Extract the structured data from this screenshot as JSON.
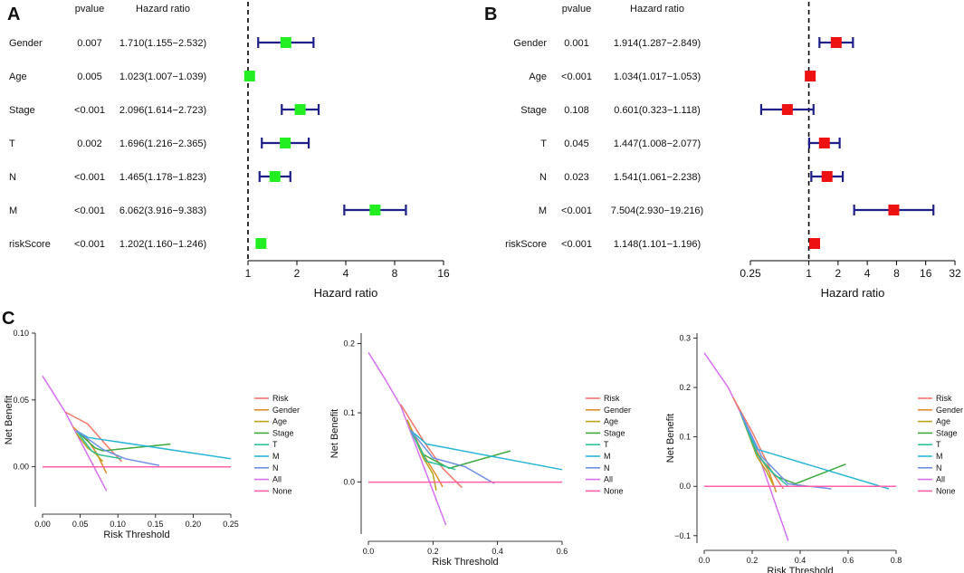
{
  "panels": {
    "A": {
      "label": "A"
    },
    "B": {
      "label": "B"
    },
    "C": {
      "label": "C"
    }
  },
  "colors": {
    "ci": "#1f1f8a",
    "forestA": "#22ee22",
    "forestB": "#ee1111",
    "Risk": "#f07a6a",
    "Gender": "#e08b2c",
    "Age": "#b9a317",
    "Stage": "#3caa3c",
    "T": "#2fbf9c",
    "M": "#2ab6d6",
    "N": "#6f8fe6",
    "All": "#d670f0",
    "None": "#ff5fa8"
  },
  "chart_data": [
    {
      "type": "forest",
      "panel": "A",
      "header_p": "pvalue",
      "header_hr": "Hazard ratio",
      "xlabel": "Hazard ratio",
      "xscale": "log2",
      "xlim": [
        1,
        16
      ],
      "xticks": [
        "1",
        "2",
        "4",
        "8",
        "16"
      ],
      "rows": [
        {
          "name": "Gender",
          "p": "0.007",
          "hr_text": "1.710(1.155−2.532)",
          "hr": 1.71,
          "lo": 1.155,
          "hi": 2.532
        },
        {
          "name": "Age",
          "p": "0.005",
          "hr_text": "1.023(1.007−1.039)",
          "hr": 1.023,
          "lo": 1.007,
          "hi": 1.039
        },
        {
          "name": "Stage",
          "p": "<0.001",
          "hr_text": "2.096(1.614−2.723)",
          "hr": 2.096,
          "lo": 1.614,
          "hi": 2.723
        },
        {
          "name": "T",
          "p": "0.002",
          "hr_text": "1.696(1.216−2.365)",
          "hr": 1.696,
          "lo": 1.216,
          "hi": 2.365
        },
        {
          "name": "N",
          "p": "<0.001",
          "hr_text": "1.465(1.178−1.823)",
          "hr": 1.465,
          "lo": 1.178,
          "hi": 1.823
        },
        {
          "name": "M",
          "p": "<0.001",
          "hr_text": "6.062(3.916−9.383)",
          "hr": 6.062,
          "lo": 3.916,
          "hi": 9.383
        },
        {
          "name": "riskScore",
          "p": "<0.001",
          "hr_text": "1.202(1.160−1.246)",
          "hr": 1.202,
          "lo": 1.16,
          "hi": 1.246
        }
      ]
    },
    {
      "type": "forest",
      "panel": "B",
      "header_p": "pvalue",
      "header_hr": "Hazard ratio",
      "xlabel": "Hazard ratio",
      "xscale": "log2",
      "xlim": [
        0.25,
        32
      ],
      "xticks": [
        "0.25",
        "1",
        "2",
        "4",
        "8",
        "16",
        "32"
      ],
      "rows": [
        {
          "name": "Gender",
          "p": "0.001",
          "hr_text": "1.914(1.287−2.849)",
          "hr": 1.914,
          "lo": 1.287,
          "hi": 2.849
        },
        {
          "name": "Age",
          "p": "<0.001",
          "hr_text": "1.034(1.017−1.053)",
          "hr": 1.034,
          "lo": 1.017,
          "hi": 1.053
        },
        {
          "name": "Stage",
          "p": "0.108",
          "hr_text": "0.601(0.323−1.118)",
          "hr": 0.601,
          "lo": 0.323,
          "hi": 1.118
        },
        {
          "name": "T",
          "p": "0.045",
          "hr_text": "1.447(1.008−2.077)",
          "hr": 1.447,
          "lo": 1.008,
          "hi": 2.077
        },
        {
          "name": "N",
          "p": "0.023",
          "hr_text": "1.541(1.061−2.238)",
          "hr": 1.541,
          "lo": 1.061,
          "hi": 2.238
        },
        {
          "name": "M",
          "p": "<0.001",
          "hr_text": "7.504(2.930−19.216)",
          "hr": 7.504,
          "lo": 2.93,
          "hi": 19.216
        },
        {
          "name": "riskScore",
          "p": "<0.001",
          "hr_text": "1.148(1.101−1.196)",
          "hr": 1.148,
          "lo": 1.101,
          "hi": 1.196
        }
      ]
    },
    {
      "type": "line",
      "panel": "C1",
      "xlabel": "Risk Threshold",
      "ylabel": "Net Benefit",
      "xlim": [
        0,
        0.25
      ],
      "ylim": [
        -0.03,
        0.1
      ],
      "xticks": [
        "0.00",
        "0.05",
        "0.10",
        "0.15",
        "0.20",
        "0.25"
      ],
      "yticks": [
        "0.00",
        "0.05",
        "0.10"
      ],
      "legend": [
        "Risk",
        "Gender",
        "Age",
        "Stage",
        "T",
        "M",
        "N",
        "All",
        "None"
      ],
      "series": [
        {
          "name": "All",
          "points": [
            [
              0,
              0.068
            ],
            [
              0.03,
              0.041
            ],
            [
              0.085,
              -0.018
            ]
          ]
        },
        {
          "name": "Risk",
          "points": [
            [
              0.03,
              0.041
            ],
            [
              0.06,
              0.032
            ],
            [
              0.085,
              0.016
            ],
            [
              0.105,
              0.004
            ]
          ]
        },
        {
          "name": "Gender",
          "points": [
            [
              0.04,
              0.03
            ],
            [
              0.06,
              0.02
            ],
            [
              0.072,
              0.01
            ],
            [
              0.085,
              -0.005
            ]
          ]
        },
        {
          "name": "Age",
          "points": [
            [
              0.045,
              0.025
            ],
            [
              0.06,
              0.014
            ],
            [
              0.07,
              0.01
            ],
            [
              0.08,
              0.004
            ]
          ]
        },
        {
          "name": "Stage",
          "points": [
            [
              0.045,
              0.027
            ],
            [
              0.07,
              0.014
            ],
            [
              0.08,
              0.012
            ],
            [
              0.17,
              0.017
            ]
          ]
        },
        {
          "name": "T",
          "points": [
            [
              0.045,
              0.027
            ],
            [
              0.065,
              0.012
            ],
            [
              0.075,
              0.009
            ],
            [
              0.105,
              0.006
            ]
          ]
        },
        {
          "name": "M",
          "points": [
            [
              0.045,
              0.027
            ],
            [
              0.06,
              0.022
            ],
            [
              0.25,
              0.006
            ]
          ]
        },
        {
          "name": "N",
          "points": [
            [
              0.045,
              0.027
            ],
            [
              0.08,
              0.013
            ],
            [
              0.11,
              0.006
            ],
            [
              0.155,
              0.001
            ]
          ]
        },
        {
          "name": "None",
          "points": [
            [
              0,
              0
            ],
            [
              0.25,
              0
            ]
          ]
        }
      ]
    },
    {
      "type": "line",
      "panel": "C2",
      "xlabel": "Risk Threshold",
      "ylabel": "Net Benefit",
      "xlim": [
        0,
        0.6
      ],
      "ylim": [
        -0.075,
        0.215
      ],
      "xticks": [
        "0.0",
        "0.2",
        "0.4",
        "0.6"
      ],
      "yticks": [
        "0.0",
        "0.1",
        "0.2"
      ],
      "legend": [
        "Risk",
        "Gender",
        "Age",
        "Stage",
        "T",
        "M",
        "N",
        "All",
        "None"
      ],
      "series": [
        {
          "name": "All",
          "points": [
            [
              0,
              0.187
            ],
            [
              0.05,
              0.15
            ],
            [
              0.1,
              0.11
            ],
            [
              0.24,
              -0.062
            ]
          ]
        },
        {
          "name": "Risk",
          "points": [
            [
              0.1,
              0.112
            ],
            [
              0.17,
              0.06
            ],
            [
              0.23,
              0.02
            ],
            [
              0.29,
              -0.008
            ]
          ]
        },
        {
          "name": "Gender",
          "points": [
            [
              0.12,
              0.09
            ],
            [
              0.17,
              0.04
            ],
            [
              0.21,
              0.01
            ],
            [
              0.23,
              -0.007
            ]
          ]
        },
        {
          "name": "Age",
          "points": [
            [
              0.12,
              0.09
            ],
            [
              0.17,
              0.035
            ],
            [
              0.2,
              0.012
            ],
            [
              0.21,
              -0.012
            ]
          ]
        },
        {
          "name": "Stage",
          "points": [
            [
              0.13,
              0.075
            ],
            [
              0.17,
              0.04
            ],
            [
              0.25,
              0.02
            ],
            [
              0.44,
              0.045
            ]
          ]
        },
        {
          "name": "T",
          "points": [
            [
              0.13,
              0.075
            ],
            [
              0.18,
              0.03
            ],
            [
              0.22,
              0.025
            ],
            [
              0.27,
              0.018
            ]
          ]
        },
        {
          "name": "M",
          "points": [
            [
              0.13,
              0.075
            ],
            [
              0.18,
              0.055
            ],
            [
              0.6,
              0.018
            ]
          ]
        },
        {
          "name": "N",
          "points": [
            [
              0.13,
              0.075
            ],
            [
              0.2,
              0.035
            ],
            [
              0.3,
              0.022
            ],
            [
              0.39,
              -0.002
            ]
          ]
        },
        {
          "name": "None",
          "points": [
            [
              0,
              0
            ],
            [
              0.6,
              0
            ]
          ]
        }
      ]
    },
    {
      "type": "line",
      "panel": "C3",
      "xlabel": "Risk Threshold",
      "ylabel": "Net Benefit",
      "xlim": [
        0,
        0.8
      ],
      "ylim": [
        -0.115,
        0.31
      ],
      "xticks": [
        "0.0",
        "0.2",
        "0.4",
        "0.6",
        "0.8"
      ],
      "yticks": [
        "−0.1",
        "0.0",
        "0.1",
        "0.2",
        "0.3"
      ],
      "legend": [
        "Risk",
        "Gender",
        "Age",
        "Stage",
        "T",
        "M",
        "N",
        "All",
        "None"
      ],
      "series": [
        {
          "name": "All",
          "points": [
            [
              0,
              0.27
            ],
            [
              0.1,
              0.2
            ],
            [
              0.2,
              0.1
            ],
            [
              0.35,
              -0.11
            ]
          ]
        },
        {
          "name": "Risk",
          "points": [
            [
              0.12,
              0.18
            ],
            [
              0.2,
              0.11
            ],
            [
              0.28,
              0.03
            ],
            [
              0.33,
              -0.005
            ]
          ]
        },
        {
          "name": "Gender",
          "points": [
            [
              0.15,
              0.15
            ],
            [
              0.22,
              0.07
            ],
            [
              0.27,
              0.03
            ],
            [
              0.3,
              -0.012
            ]
          ]
        },
        {
          "name": "Age",
          "points": [
            [
              0.15,
              0.15
            ],
            [
              0.22,
              0.06
            ],
            [
              0.26,
              0.03
            ],
            [
              0.29,
              0.0
            ]
          ]
        },
        {
          "name": "Stage",
          "points": [
            [
              0.15,
              0.15
            ],
            [
              0.22,
              0.065
            ],
            [
              0.3,
              0.02
            ],
            [
              0.38,
              0.005
            ],
            [
              0.59,
              0.045
            ]
          ]
        },
        {
          "name": "T",
          "points": [
            [
              0.15,
              0.15
            ],
            [
              0.22,
              0.065
            ],
            [
              0.28,
              0.03
            ],
            [
              0.35,
              0.0
            ]
          ]
        },
        {
          "name": "M",
          "points": [
            [
              0.15,
              0.15
            ],
            [
              0.22,
              0.075
            ],
            [
              0.77,
              -0.005
            ]
          ]
        },
        {
          "name": "N",
          "points": [
            [
              0.15,
              0.15
            ],
            [
              0.24,
              0.06
            ],
            [
              0.35,
              0.005
            ],
            [
              0.53,
              -0.005
            ]
          ]
        },
        {
          "name": "None",
          "points": [
            [
              0,
              0
            ],
            [
              0.8,
              0
            ]
          ]
        }
      ]
    }
  ]
}
